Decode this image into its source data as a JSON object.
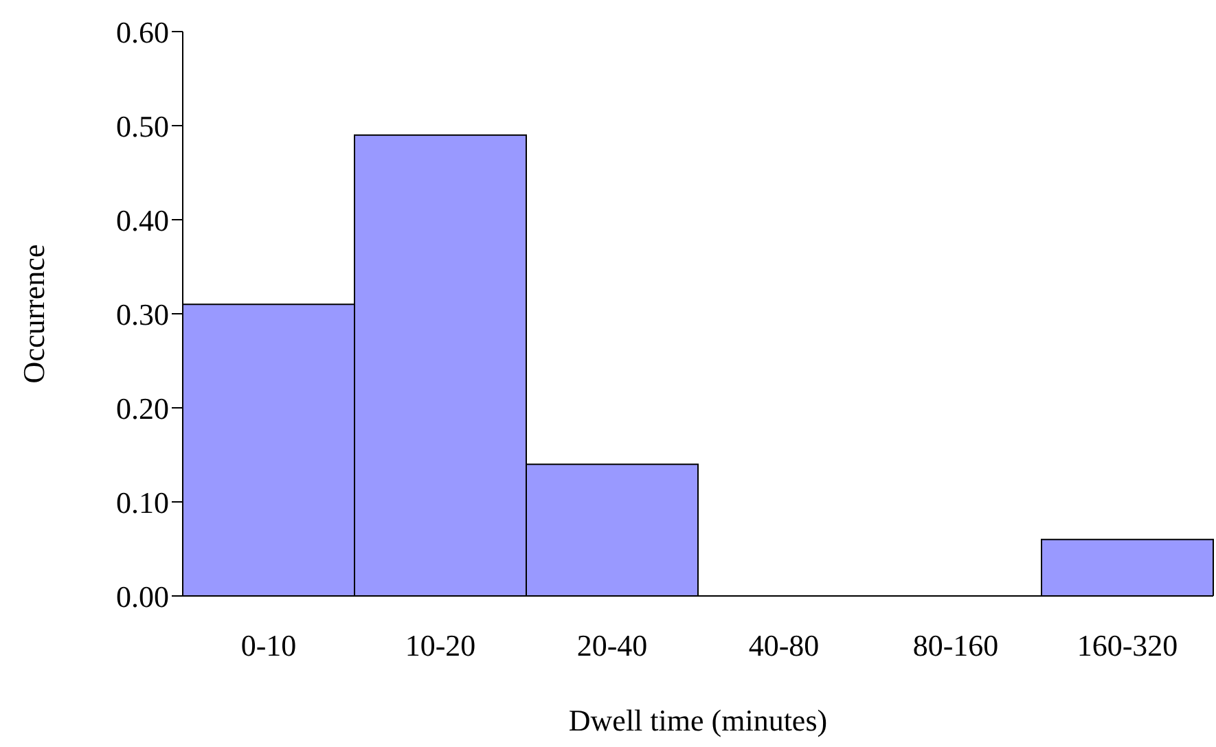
{
  "chart_data": {
    "type": "bar",
    "xlabel": "Dwell time (minutes)",
    "ylabel": "Occurrence",
    "categories": [
      "0-10",
      "10-20",
      "20-40",
      "40-80",
      "80-160",
      "160-320"
    ],
    "values": [
      0.31,
      0.49,
      0.14,
      0,
      0,
      0.06
    ],
    "color": "#9999ff",
    "ylim": [
      0,
      0.6
    ],
    "yticks": [
      {
        "value": 0,
        "label": "0.00"
      },
      {
        "value": 0.1,
        "label": "0.10"
      },
      {
        "value": 0.2,
        "label": "0.20"
      },
      {
        "value": 0.3,
        "label": "0.30"
      },
      {
        "value": 0.4,
        "label": "0.40"
      },
      {
        "value": 0.5,
        "label": "0.50"
      },
      {
        "value": 0.6,
        "label": "0.60"
      }
    ],
    "grid": false,
    "legend": false
  }
}
